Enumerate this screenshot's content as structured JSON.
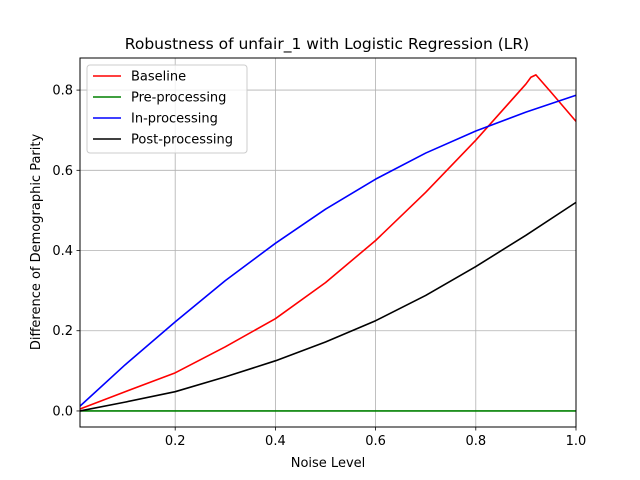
{
  "chart_data": {
    "type": "line",
    "title": "Robustness of unfair_1 with Logistic Regression (LR)",
    "xlabel": "Noise Level",
    "ylabel": "Difference of Demographic Parity",
    "xlim": [
      0.01,
      1.0
    ],
    "ylim": [
      -0.04,
      0.88
    ],
    "xticks": [
      0.2,
      0.4,
      0.6,
      0.8,
      1.0
    ],
    "xtick_labels": [
      "0.2",
      "0.4",
      "0.6",
      "0.8",
      "1.0"
    ],
    "yticks": [
      0.0,
      0.2,
      0.4,
      0.6,
      0.8
    ],
    "ytick_labels": [
      "0.0",
      "0.2",
      "0.4",
      "0.6",
      "0.8"
    ],
    "grid": true,
    "legend_position": "upper-left",
    "series": [
      {
        "name": "Baseline",
        "color": "#ff0000",
        "x": [
          0.01,
          0.1,
          0.2,
          0.3,
          0.4,
          0.5,
          0.6,
          0.7,
          0.8,
          0.9,
          0.91,
          0.92,
          0.95,
          1.0
        ],
        "y": [
          0.005,
          0.048,
          0.095,
          0.16,
          0.23,
          0.32,
          0.425,
          0.545,
          0.675,
          0.815,
          0.832,
          0.838,
          0.795,
          0.722
        ]
      },
      {
        "name": "Pre-processing",
        "color": "#008000",
        "x": [
          0.01,
          1.0
        ],
        "y": [
          0.0,
          0.0
        ]
      },
      {
        "name": "In-processing",
        "color": "#0000ff",
        "x": [
          0.01,
          0.1,
          0.2,
          0.3,
          0.4,
          0.5,
          0.6,
          0.7,
          0.8,
          0.9,
          1.0
        ],
        "y": [
          0.012,
          0.115,
          0.222,
          0.325,
          0.418,
          0.503,
          0.578,
          0.643,
          0.698,
          0.745,
          0.787
        ]
      },
      {
        "name": "Post-processing",
        "color": "#000000",
        "x": [
          0.01,
          0.1,
          0.2,
          0.3,
          0.4,
          0.5,
          0.6,
          0.7,
          0.8,
          0.9,
          1.0
        ],
        "y": [
          0.0,
          0.022,
          0.048,
          0.085,
          0.125,
          0.172,
          0.225,
          0.288,
          0.36,
          0.438,
          0.52
        ]
      }
    ]
  }
}
